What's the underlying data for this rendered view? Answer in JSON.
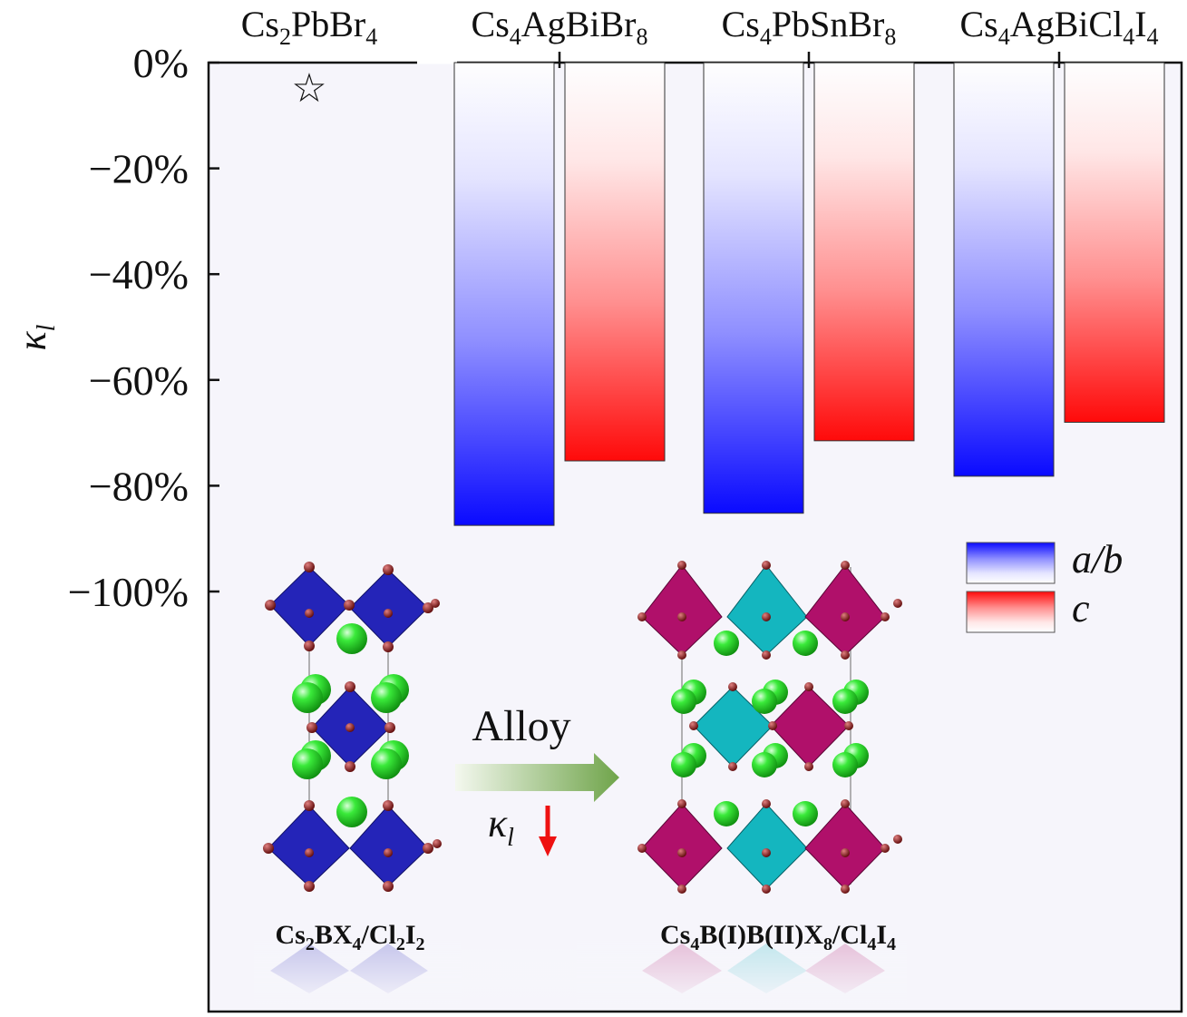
{
  "chart_data": {
    "type": "bar",
    "categories": [
      {
        "base": "Cs",
        "parts": [
          [
            "Cs",
            ""
          ],
          [
            "2",
            "sub"
          ],
          [
            "PbBr",
            ""
          ],
          [
            "4",
            "sub"
          ]
        ]
      },
      {
        "base": "Cs",
        "parts": [
          [
            "Cs",
            ""
          ],
          [
            "4",
            "sub"
          ],
          [
            "AgBiBr",
            ""
          ],
          [
            "8",
            "sub"
          ]
        ]
      },
      {
        "base": "Cs",
        "parts": [
          [
            "Cs",
            ""
          ],
          [
            "4",
            "sub"
          ],
          [
            "PbSnBr",
            ""
          ],
          [
            "8",
            "sub"
          ]
        ]
      },
      {
        "base": "Cs",
        "parts": [
          [
            "Cs",
            ""
          ],
          [
            "4",
            "sub"
          ],
          [
            "AgBiCl",
            ""
          ],
          [
            "4",
            "sub"
          ],
          [
            "I",
            ""
          ],
          [
            "4",
            "sub"
          ]
        ]
      }
    ],
    "category_text": [
      "Cs2PbBr4",
      "Cs4AgBiBr8",
      "Cs4PbSnBr8",
      "Cs4AgBiCl4I4"
    ],
    "series": [
      {
        "name": "a/b",
        "values": [
          0,
          -87.5,
          -85.2,
          -78.2
        ],
        "color": "#1010ff"
      },
      {
        "name": "c",
        "values": [
          0,
          -75.3,
          -71.5,
          -68.0
        ],
        "color": "#ff1010"
      }
    ],
    "reference_marker": {
      "category": "Cs2PbBr4",
      "symbol": "☆"
    },
    "ylabel": "κl",
    "ylim": [
      -180,
      0
    ],
    "yticks": [
      0,
      -20,
      -40,
      -60,
      -80,
      -100
    ],
    "ytick_labels": [
      "0%",
      "−20%",
      "−40%",
      "−60%",
      "−80%",
      "−100%"
    ],
    "legend": {
      "placement": "right",
      "entries": [
        "a/b",
        "c"
      ]
    },
    "grid": false,
    "plot_background": "#f6f5fb"
  },
  "inset": {
    "left_formula": "Cs2BX4/Cl2I2",
    "right_formula": "Cs4B(I)B(II)X8/Cl4I4",
    "arrow_label": "Alloy",
    "kappa_label": "κl",
    "colors": {
      "octahedron_blue": "#2222bb",
      "octahedron_magenta": "#b0106a",
      "octahedron_cyan": "#10b5be",
      "cs_atom": "#22dd22",
      "halide_atom": "#7a1010",
      "arrow_green": "#7fae5b",
      "down_arrow": "#ee1111"
    }
  }
}
